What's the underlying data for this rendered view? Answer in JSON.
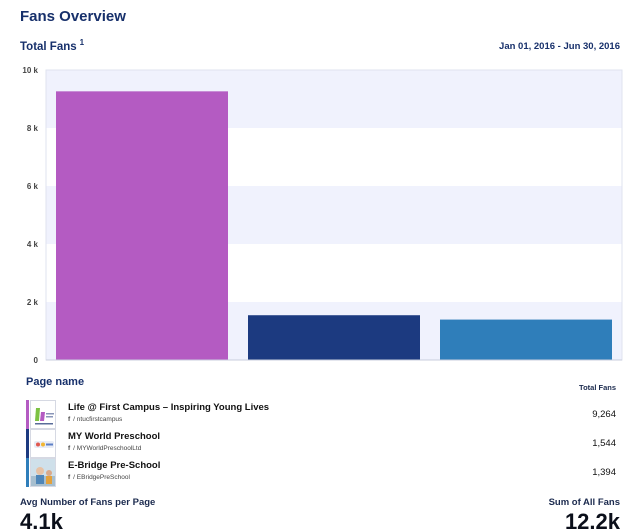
{
  "header": {
    "title": "Fans Overview",
    "subtitle": "Total Fans",
    "footnote": "1",
    "date_range": "Jan 01, 2016 - Jun 30, 2016"
  },
  "chart_data": {
    "type": "bar",
    "categories": [
      "Life @ First Campus – Inspiring Young Lives",
      "MY World Preschool",
      "E-Bridge Pre-School"
    ],
    "values": [
      9264,
      1544,
      1394
    ],
    "colors": [
      "#b45bc2",
      "#1c3a80",
      "#2f7eba"
    ],
    "ylim": [
      0,
      10000
    ],
    "yticks": [
      0,
      2000,
      4000,
      6000,
      8000,
      10000
    ],
    "ytick_labels": [
      "0",
      "2 k",
      "4 k",
      "6 k",
      "8 k",
      "10 k"
    ],
    "grid": true,
    "band_colors": [
      "#f0f2fd",
      "#ffffff"
    ]
  },
  "table": {
    "column_page": "Page name",
    "column_fans": "Total Fans",
    "rows": [
      {
        "name": "Life @ First Campus – Inspiring Young Lives",
        "fb_icon": "f",
        "handle": "/ ntucfirstcampus",
        "value": "9,264",
        "color": "#b45bc2",
        "thumb": "first-campus-logo"
      },
      {
        "name": "MY World Preschool",
        "fb_icon": "f",
        "handle": "/ MYWorldPreschoolLtd",
        "value": "1,544",
        "color": "#1c3a80",
        "thumb": "my-world-logo"
      },
      {
        "name": "E-Bridge Pre-School",
        "fb_icon": "f",
        "handle": "/ EBridgePreSchool",
        "value": "1,394",
        "color": "#2f7eba",
        "thumb": "ebridge-photo"
      }
    ]
  },
  "footer": {
    "avg_label": "Avg Number of Fans per Page",
    "avg_value": "4.1k",
    "sum_label": "Sum of All Fans",
    "sum_value": "12.2k"
  }
}
